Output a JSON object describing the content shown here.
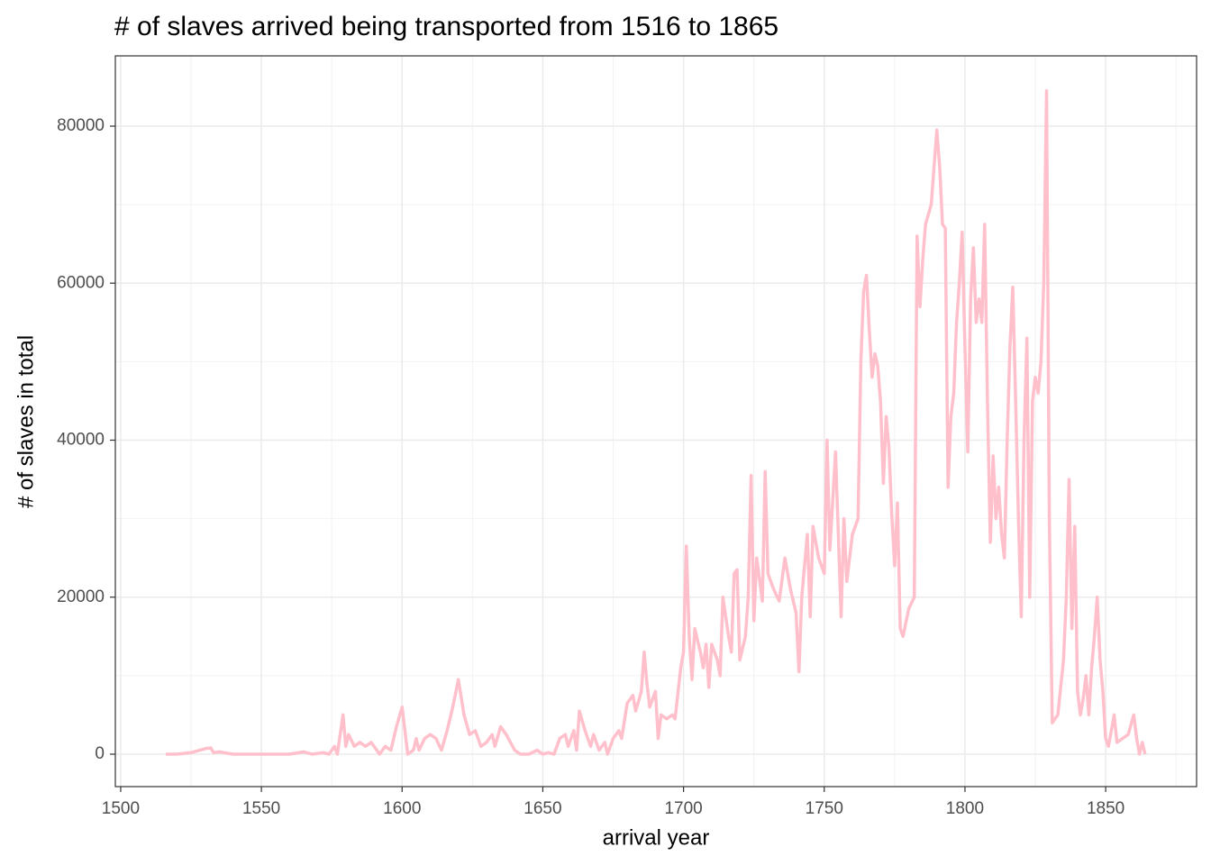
{
  "chart_data": {
    "type": "line",
    "title": "# of slaves arrived being transported from 1516 to 1865",
    "x_label": "arrival year",
    "y_label": "# of slaves in total",
    "xlim": [
      1498.1,
      1882.3
    ],
    "ylim": [
      -4132,
      88953
    ],
    "xticks": [
      1500,
      1550,
      1600,
      1650,
      1700,
      1750,
      1800,
      1850
    ],
    "yticks": [
      0,
      20000,
      40000,
      60000,
      80000
    ],
    "x_minor_ticks": [
      1525,
      1575,
      1625,
      1675,
      1725,
      1775,
      1825,
      1875
    ],
    "y_minor_ticks": [
      10000,
      30000,
      50000,
      70000
    ],
    "grid": true,
    "series": [
      {
        "name": "slaves",
        "color": "#ffc0cb",
        "x": [
          1516,
          1520,
          1525,
          1530,
          1532,
          1533,
          1535,
          1540,
          1550,
          1560,
          1565,
          1568,
          1572,
          1574,
          1576,
          1577,
          1579,
          1580,
          1581,
          1583,
          1585,
          1587,
          1589,
          1592,
          1594,
          1596,
          1598,
          1600,
          1601,
          1602,
          1604,
          1605,
          1606,
          1608,
          1610,
          1612,
          1614,
          1616,
          1618,
          1620,
          1622,
          1624,
          1626,
          1628,
          1630,
          1632,
          1633,
          1635,
          1637,
          1640,
          1642,
          1645,
          1648,
          1650,
          1652,
          1654,
          1656,
          1658,
          1659,
          1661,
          1662,
          1663,
          1665,
          1667,
          1668,
          1670,
          1672,
          1673,
          1675,
          1677,
          1678,
          1680,
          1682,
          1683,
          1685,
          1686,
          1687,
          1688,
          1690,
          1691,
          1692,
          1694,
          1696,
          1697,
          1699,
          1700,
          1701,
          1702,
          1703,
          1704,
          1706,
          1707,
          1708,
          1709,
          1710,
          1712,
          1713,
          1714,
          1716,
          1717,
          1718,
          1719,
          1720,
          1722,
          1723,
          1724,
          1725,
          1726,
          1728,
          1729,
          1730,
          1732,
          1734,
          1736,
          1738,
          1740,
          1741,
          1742,
          1744,
          1745,
          1746,
          1748,
          1750,
          1751,
          1752,
          1754,
          1755,
          1756,
          1757,
          1758,
          1760,
          1762,
          1763,
          1764,
          1765,
          1766,
          1767,
          1768,
          1769,
          1770,
          1771,
          1772,
          1773,
          1774,
          1775,
          1776,
          1777,
          1778,
          1780,
          1782,
          1783,
          1784,
          1785,
          1786,
          1788,
          1790,
          1791,
          1792,
          1793,
          1794,
          1795,
          1796,
          1797,
          1798,
          1799,
          1800,
          1801,
          1802,
          1803,
          1804,
          1805,
          1806,
          1807,
          1808,
          1809,
          1810,
          1811,
          1812,
          1813,
          1814,
          1815,
          1816,
          1817,
          1818,
          1819,
          1820,
          1821,
          1822,
          1823,
          1824,
          1825,
          1826,
          1827,
          1828,
          1829,
          1830,
          1831,
          1833,
          1835,
          1836,
          1837,
          1838,
          1839,
          1840,
          1841,
          1842,
          1843,
          1844,
          1845,
          1846,
          1847,
          1848,
          1849,
          1850,
          1851,
          1852,
          1853,
          1854,
          1856,
          1858,
          1860,
          1861,
          1862,
          1863,
          1864
        ],
        "values": [
          0,
          0,
          200,
          700,
          800,
          200,
          300,
          0,
          0,
          0,
          300,
          0,
          200,
          0,
          1000,
          0,
          5000,
          1000,
          2500,
          1000,
          1500,
          1000,
          1500,
          0,
          1000,
          500,
          3500,
          6000,
          3000,
          0,
          500,
          2000,
          500,
          2000,
          2500,
          2000,
          500,
          3000,
          6000,
          9500,
          5000,
          2500,
          3000,
          1000,
          1500,
          2500,
          1000,
          3500,
          2500,
          500,
          0,
          0,
          500,
          0,
          200,
          0,
          2000,
          2500,
          1000,
          3000,
          500,
          5500,
          3000,
          1000,
          2500,
          500,
          1500,
          0,
          2000,
          3000,
          2000,
          6500,
          7500,
          5500,
          8000,
          13000,
          9000,
          6000,
          8000,
          2000,
          5000,
          4500,
          5000,
          4500,
          11000,
          13000,
          26500,
          15000,
          9500,
          16000,
          13000,
          11000,
          14000,
          8500,
          14000,
          12000,
          10000,
          20000,
          15000,
          13000,
          23000,
          23500,
          12000,
          15000,
          20000,
          35500,
          17000,
          25000,
          19500,
          36000,
          23000,
          21000,
          19500,
          25000,
          21000,
          18000,
          10500,
          20000,
          28000,
          17500,
          29000,
          25000,
          23000,
          40000,
          26000,
          38500,
          28000,
          17500,
          30000,
          22000,
          28000,
          30000,
          50000,
          59000,
          61000,
          54000,
          48000,
          51000,
          49500,
          45000,
          34500,
          43000,
          39000,
          30500,
          24000,
          32000,
          16000,
          15000,
          18500,
          20000,
          66000,
          57000,
          63000,
          67500,
          70000,
          79500,
          75000,
          67500,
          67000,
          34000,
          43000,
          46000,
          55000,
          60000,
          66500,
          52000,
          38500,
          58000,
          64500,
          55000,
          58000,
          55000,
          67500,
          45000,
          27000,
          38000,
          30000,
          34000,
          28000,
          25000,
          40000,
          52000,
          59500,
          45000,
          30000,
          17500,
          40000,
          53000,
          20000,
          45000,
          48000,
          46000,
          50000,
          60000,
          84500,
          30000,
          4000,
          5000,
          12000,
          20000,
          35000,
          16000,
          29000,
          8000,
          5000,
          7000,
          10000,
          5000,
          11000,
          15000,
          20000,
          12000,
          8000,
          2000,
          1000,
          3000,
          5000,
          1500,
          2000,
          2500,
          5000,
          2000,
          0,
          1500,
          0
        ]
      }
    ]
  }
}
